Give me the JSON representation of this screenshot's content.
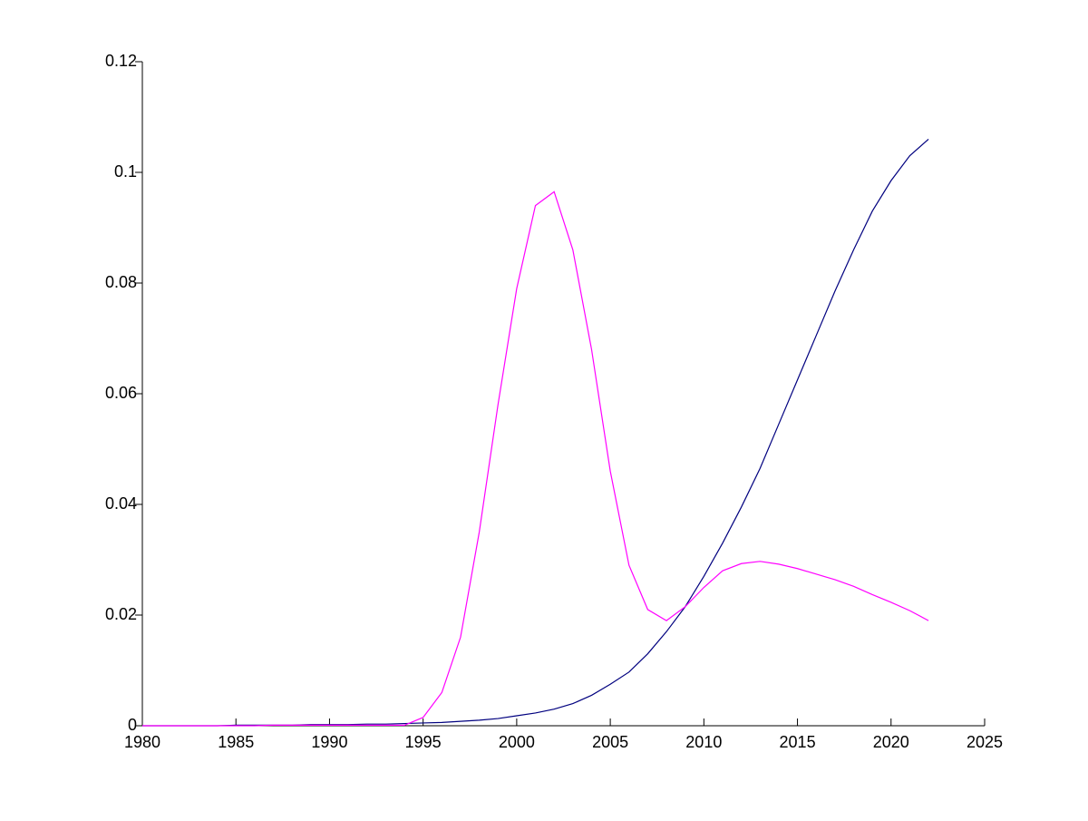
{
  "chart_data": {
    "type": "line",
    "x": [
      1980,
      1981,
      1982,
      1983,
      1984,
      1985,
      1986,
      1987,
      1988,
      1989,
      1990,
      1991,
      1992,
      1993,
      1994,
      1995,
      1996,
      1997,
      1998,
      1999,
      2000,
      2001,
      2002,
      2003,
      2004,
      2005,
      2006,
      2007,
      2008,
      2009,
      2010,
      2011,
      2012,
      2013,
      2014,
      2015,
      2016,
      2017,
      2018,
      2019,
      2020,
      2021,
      2022
    ],
    "series": [
      {
        "color": "#00007f",
        "values": [
          0,
          0,
          0,
          0,
          0,
          0.0001,
          0.0001,
          0.0001,
          0.0001,
          0.0002,
          0.0002,
          0.0002,
          0.0003,
          0.0003,
          0.0004,
          0.0005,
          0.0006,
          0.0008,
          0.001,
          0.0013,
          0.0018,
          0.0023,
          0.003,
          0.004,
          0.0055,
          0.0075,
          0.0097,
          0.013,
          0.017,
          0.0215,
          0.027,
          0.033,
          0.0395,
          0.0465,
          0.0545,
          0.0625,
          0.0705,
          0.0785,
          0.086,
          0.093,
          0.0985,
          0.103,
          0.106
        ]
      },
      {
        "color": "#ff00ff",
        "values": [
          0,
          0,
          0,
          0,
          0,
          0,
          0,
          0.0001,
          0.0001,
          0.0001,
          0.0001,
          0.0001,
          0.0001,
          0.0001,
          0.0001,
          0.0015,
          0.006,
          0.016,
          0.035,
          0.058,
          0.079,
          0.094,
          0.0965,
          0.086,
          0.068,
          0.046,
          0.029,
          0.021,
          0.019,
          0.0215,
          0.025,
          0.028,
          0.0293,
          0.0297,
          0.0292,
          0.0284,
          0.0274,
          0.0264,
          0.0252,
          0.0237,
          0.0223,
          0.0208,
          0.019
        ]
      }
    ],
    "xlim": [
      1980,
      2025
    ],
    "xticks": [
      1980,
      1985,
      1990,
      1995,
      2000,
      2005,
      2010,
      2015,
      2020,
      2025
    ],
    "ylim": [
      0,
      0.12
    ],
    "yticks": [
      0,
      0.02,
      0.04,
      0.06,
      0.08,
      0.1,
      0.12
    ]
  }
}
